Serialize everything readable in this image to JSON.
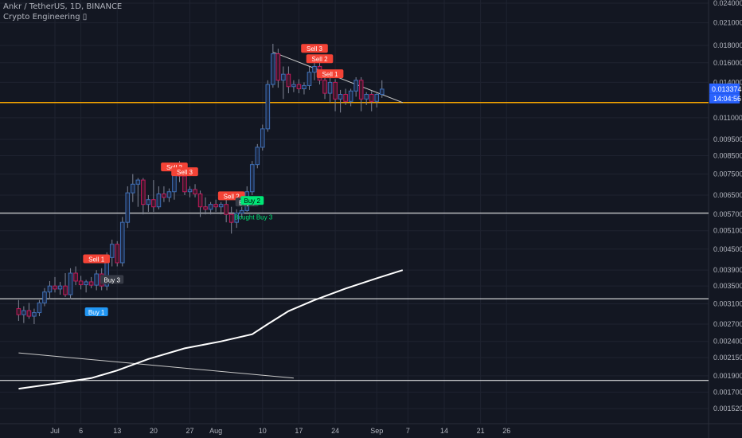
{
  "header": {
    "symbol_line": "Ankr / TetherUS, 1D, BINANCE",
    "indicator_line": "Crypto Engineering ▯"
  },
  "colors": {
    "background": "#131722",
    "grid": "#1f2330",
    "candle_up": "#3d6fb8",
    "candle_down": "#c2185b",
    "wick": "#7f8595",
    "axis_text": "#b2b5be",
    "resistance": "#f7a600",
    "level_line": "#ffffff",
    "trendline": "#c8c8c8",
    "sell_label": "#f44336",
    "buy_label": "#2196f3",
    "neutral_label": "#363a45",
    "green_label": "#00e676",
    "price_tag": "#2962ff"
  },
  "chart_data": {
    "type": "candlestick",
    "symbol": "Ankr / TetherUS",
    "timeframe": "1D",
    "exchange": "BINANCE",
    "y_axis": {
      "scale": "log",
      "ylim": [
        0.00142,
        0.0255
      ],
      "tick_labels": [
        "0.024000",
        "0.021000",
        "0.018000",
        "0.016000",
        "0.014000",
        "0.011000",
        "0.009500",
        "0.008500",
        "0.007500",
        "0.006500",
        "0.005700",
        "0.005100",
        "0.004500",
        "0.003900",
        "0.003500",
        "0.003100",
        "0.002700",
        "0.002400",
        "0.002150",
        "0.001900",
        "0.001700",
        "0.001520"
      ]
    },
    "x_axis": {
      "tick_labels": [
        "Jul",
        "6",
        "13",
        "20",
        "27",
        "Aug",
        "10",
        "17",
        "24",
        "Sep",
        "7",
        "14",
        "21",
        "26"
      ],
      "tick_days": [
        0,
        5,
        12,
        19,
        26,
        31,
        40,
        47,
        54,
        62,
        68,
        75,
        82,
        87
      ]
    },
    "last_price": "0.013374",
    "countdown": "14:04:56",
    "candles": [
      {
        "d": -7,
        "o": 0.003,
        "h": 0.00318,
        "l": 0.00276,
        "c": 0.00288
      },
      {
        "d": -6,
        "o": 0.00288,
        "h": 0.00305,
        "l": 0.00272,
        "c": 0.00296
      },
      {
        "d": -5,
        "o": 0.00296,
        "h": 0.00312,
        "l": 0.0028,
        "c": 0.00285
      },
      {
        "d": -4,
        "o": 0.00285,
        "h": 0.003,
        "l": 0.0027,
        "c": 0.00292
      },
      {
        "d": -3,
        "o": 0.00292,
        "h": 0.00318,
        "l": 0.00285,
        "c": 0.00312
      },
      {
        "d": -2,
        "o": 0.00312,
        "h": 0.00345,
        "l": 0.00305,
        "c": 0.00336
      },
      {
        "d": -1,
        "o": 0.00336,
        "h": 0.00362,
        "l": 0.0032,
        "c": 0.0035
      },
      {
        "d": 0,
        "o": 0.0035,
        "h": 0.00372,
        "l": 0.00335,
        "c": 0.00343
      },
      {
        "d": 1,
        "o": 0.00343,
        "h": 0.0036,
        "l": 0.0033,
        "c": 0.0035
      },
      {
        "d": 2,
        "o": 0.0035,
        "h": 0.00382,
        "l": 0.00325,
        "c": 0.0033
      },
      {
        "d": 3,
        "o": 0.0033,
        "h": 0.00395,
        "l": 0.0032,
        "c": 0.00382
      },
      {
        "d": 4,
        "o": 0.00382,
        "h": 0.004,
        "l": 0.00352,
        "c": 0.00362
      },
      {
        "d": 5,
        "o": 0.00362,
        "h": 0.00375,
        "l": 0.00342,
        "c": 0.00353
      },
      {
        "d": 6,
        "o": 0.00353,
        "h": 0.00365,
        "l": 0.00335,
        "c": 0.0036
      },
      {
        "d": 7,
        "o": 0.0036,
        "h": 0.00372,
        "l": 0.00345,
        "c": 0.00352
      },
      {
        "d": 8,
        "o": 0.00352,
        "h": 0.0039,
        "l": 0.0034,
        "c": 0.0038
      },
      {
        "d": 9,
        "o": 0.0038,
        "h": 0.00395,
        "l": 0.0034,
        "c": 0.0035
      },
      {
        "d": 10,
        "o": 0.0035,
        "h": 0.0044,
        "l": 0.0034,
        "c": 0.00425
      },
      {
        "d": 11,
        "o": 0.00425,
        "h": 0.0048,
        "l": 0.004,
        "c": 0.00465
      },
      {
        "d": 12,
        "o": 0.00465,
        "h": 0.00475,
        "l": 0.004,
        "c": 0.0041
      },
      {
        "d": 13,
        "o": 0.0041,
        "h": 0.0056,
        "l": 0.004,
        "c": 0.0054
      },
      {
        "d": 14,
        "o": 0.0054,
        "h": 0.0069,
        "l": 0.0052,
        "c": 0.0066
      },
      {
        "d": 15,
        "o": 0.0066,
        "h": 0.0075,
        "l": 0.0062,
        "c": 0.007
      },
      {
        "d": 16,
        "o": 0.007,
        "h": 0.0073,
        "l": 0.006,
        "c": 0.0072
      },
      {
        "d": 17,
        "o": 0.0072,
        "h": 0.0073,
        "l": 0.0057,
        "c": 0.0061
      },
      {
        "d": 18,
        "o": 0.0061,
        "h": 0.0065,
        "l": 0.0058,
        "c": 0.0063
      },
      {
        "d": 19,
        "o": 0.0063,
        "h": 0.0072,
        "l": 0.0058,
        "c": 0.006
      },
      {
        "d": 20,
        "o": 0.006,
        "h": 0.0069,
        "l": 0.0059,
        "c": 0.00655
      },
      {
        "d": 21,
        "o": 0.00655,
        "h": 0.0069,
        "l": 0.0062,
        "c": 0.0064
      },
      {
        "d": 22,
        "o": 0.0064,
        "h": 0.0068,
        "l": 0.0062,
        "c": 0.00665
      },
      {
        "d": 23,
        "o": 0.00665,
        "h": 0.0079,
        "l": 0.0063,
        "c": 0.0077
      },
      {
        "d": 24,
        "o": 0.0077,
        "h": 0.0082,
        "l": 0.0071,
        "c": 0.0074
      },
      {
        "d": 25,
        "o": 0.0074,
        "h": 0.0076,
        "l": 0.0065,
        "c": 0.00665
      },
      {
        "d": 26,
        "o": 0.00665,
        "h": 0.0069,
        "l": 0.0064,
        "c": 0.00675
      },
      {
        "d": 27,
        "o": 0.00675,
        "h": 0.007,
        "l": 0.0064,
        "c": 0.00655
      },
      {
        "d": 28,
        "o": 0.00655,
        "h": 0.0067,
        "l": 0.0056,
        "c": 0.006
      },
      {
        "d": 29,
        "o": 0.006,
        "h": 0.0064,
        "l": 0.0057,
        "c": 0.0059
      },
      {
        "d": 30,
        "o": 0.0059,
        "h": 0.0062,
        "l": 0.0057,
        "c": 0.0061
      },
      {
        "d": 31,
        "o": 0.0061,
        "h": 0.0063,
        "l": 0.0058,
        "c": 0.006
      },
      {
        "d": 32,
        "o": 0.006,
        "h": 0.0062,
        "l": 0.0057,
        "c": 0.0061
      },
      {
        "d": 33,
        "o": 0.0061,
        "h": 0.0064,
        "l": 0.0054,
        "c": 0.0057
      },
      {
        "d": 34,
        "o": 0.0057,
        "h": 0.006,
        "l": 0.005,
        "c": 0.0054
      },
      {
        "d": 35,
        "o": 0.0054,
        "h": 0.0059,
        "l": 0.0052,
        "c": 0.00575
      },
      {
        "d": 36,
        "o": 0.00575,
        "h": 0.006,
        "l": 0.0056,
        "c": 0.00585
      },
      {
        "d": 37,
        "o": 0.00585,
        "h": 0.0069,
        "l": 0.0058,
        "c": 0.00665
      },
      {
        "d": 38,
        "o": 0.00665,
        "h": 0.0082,
        "l": 0.0065,
        "c": 0.008
      },
      {
        "d": 39,
        "o": 0.008,
        "h": 0.0092,
        "l": 0.0078,
        "c": 0.009
      },
      {
        "d": 40,
        "o": 0.009,
        "h": 0.0105,
        "l": 0.0088,
        "c": 0.0102
      },
      {
        "d": 41,
        "o": 0.0102,
        "h": 0.0142,
        "l": 0.01,
        "c": 0.0138
      },
      {
        "d": 42,
        "o": 0.0138,
        "h": 0.0182,
        "l": 0.0135,
        "c": 0.017
      },
      {
        "d": 43,
        "o": 0.017,
        "h": 0.0176,
        "l": 0.0135,
        "c": 0.0142
      },
      {
        "d": 44,
        "o": 0.0142,
        "h": 0.0156,
        "l": 0.0125,
        "c": 0.0148
      },
      {
        "d": 45,
        "o": 0.0148,
        "h": 0.0156,
        "l": 0.013,
        "c": 0.0136
      },
      {
        "d": 46,
        "o": 0.0136,
        "h": 0.0142,
        "l": 0.0131,
        "c": 0.0138
      },
      {
        "d": 47,
        "o": 0.0138,
        "h": 0.0143,
        "l": 0.013,
        "c": 0.0134
      },
      {
        "d": 48,
        "o": 0.0134,
        "h": 0.014,
        "l": 0.0129,
        "c": 0.0137
      },
      {
        "d": 49,
        "o": 0.0137,
        "h": 0.0156,
        "l": 0.0133,
        "c": 0.015
      },
      {
        "d": 50,
        "o": 0.015,
        "h": 0.016,
        "l": 0.0142,
        "c": 0.0156
      },
      {
        "d": 51,
        "o": 0.0156,
        "h": 0.0164,
        "l": 0.0138,
        "c": 0.0142
      },
      {
        "d": 52,
        "o": 0.0142,
        "h": 0.0147,
        "l": 0.0125,
        "c": 0.013
      },
      {
        "d": 53,
        "o": 0.013,
        "h": 0.0145,
        "l": 0.0122,
        "c": 0.014
      },
      {
        "d": 54,
        "o": 0.014,
        "h": 0.0143,
        "l": 0.0115,
        "c": 0.0125
      },
      {
        "d": 55,
        "o": 0.0125,
        "h": 0.0133,
        "l": 0.0114,
        "c": 0.0129
      },
      {
        "d": 56,
        "o": 0.0129,
        "h": 0.0134,
        "l": 0.012,
        "c": 0.0123
      },
      {
        "d": 57,
        "o": 0.0123,
        "h": 0.0134,
        "l": 0.0119,
        "c": 0.0132
      },
      {
        "d": 58,
        "o": 0.0132,
        "h": 0.0145,
        "l": 0.0127,
        "c": 0.0142
      },
      {
        "d": 59,
        "o": 0.0142,
        "h": 0.0145,
        "l": 0.0115,
        "c": 0.0125
      },
      {
        "d": 60,
        "o": 0.0125,
        "h": 0.0131,
        "l": 0.012,
        "c": 0.0129
      },
      {
        "d": 61,
        "o": 0.0129,
        "h": 0.0132,
        "l": 0.0115,
        "c": 0.0123
      },
      {
        "d": 62,
        "o": 0.0123,
        "h": 0.013,
        "l": 0.0118,
        "c": 0.0129
      },
      {
        "d": 63,
        "o": 0.0129,
        "h": 0.0142,
        "l": 0.0126,
        "c": 0.01337
      }
    ],
    "horizontal_levels": [
      {
        "name": "resistance",
        "price": 0.0122,
        "color": "#f7a600"
      },
      {
        "name": "level-1",
        "price": 0.00575,
        "color": "#ffffff"
      },
      {
        "name": "level-2",
        "price": 0.00321,
        "color": "#ffffff"
      },
      {
        "name": "level-3",
        "price": 0.00184,
        "color": "#ffffff"
      }
    ],
    "trendlines": [
      {
        "name": "upper-trendline",
        "points": [
          [
            42,
            0.0172
          ],
          [
            67,
            0.0122
          ]
        ]
      },
      {
        "name": "long-descending-line",
        "points": [
          [
            -7,
            0.00222
          ],
          [
            46,
            0.00187
          ]
        ]
      }
    ],
    "moving_average": [
      [
        -7,
        0.00174
      ],
      [
        0,
        0.0018
      ],
      [
        7,
        0.00187
      ],
      [
        12,
        0.00197
      ],
      [
        18,
        0.00213
      ],
      [
        25,
        0.00229
      ],
      [
        32,
        0.0024
      ],
      [
        38,
        0.00252
      ],
      [
        41,
        0.0027
      ],
      [
        45,
        0.00295
      ],
      [
        50,
        0.00318
      ],
      [
        56,
        0.00344
      ],
      [
        62,
        0.00369
      ],
      [
        67,
        0.0039
      ]
    ],
    "signals": [
      {
        "text": "Sell 1",
        "d": 8,
        "price": 0.0042,
        "type": "sell"
      },
      {
        "text": "Buy 3",
        "d": 11,
        "price": 0.00365,
        "type": "neutral"
      },
      {
        "text": "Buy 1",
        "d": 8,
        "price": 0.00293,
        "type": "buy"
      },
      {
        "text": "Sell 2",
        "d": 23,
        "price": 0.00785,
        "type": "sell"
      },
      {
        "text": "Sell 3",
        "d": 25,
        "price": 0.0076,
        "type": "sell"
      },
      {
        "text": "Sell 2",
        "d": 34,
        "price": 0.00645,
        "type": "sell"
      },
      {
        "text": "Buy 3",
        "d": 37,
        "price": 0.00618,
        "type": "neutral"
      },
      {
        "text": "Buy 2",
        "d": 38,
        "price": 0.00625,
        "type": "green"
      },
      {
        "text": "Bought Buy 3",
        "d": 37,
        "price": 0.0056,
        "type": "green-text"
      },
      {
        "text": "Sell 3",
        "d": 50,
        "price": 0.0176,
        "type": "sell"
      },
      {
        "text": "Sell 2",
        "d": 51,
        "price": 0.0164,
        "type": "sell"
      },
      {
        "text": "Sell 1",
        "d": 53,
        "price": 0.0148,
        "type": "sell"
      }
    ]
  }
}
